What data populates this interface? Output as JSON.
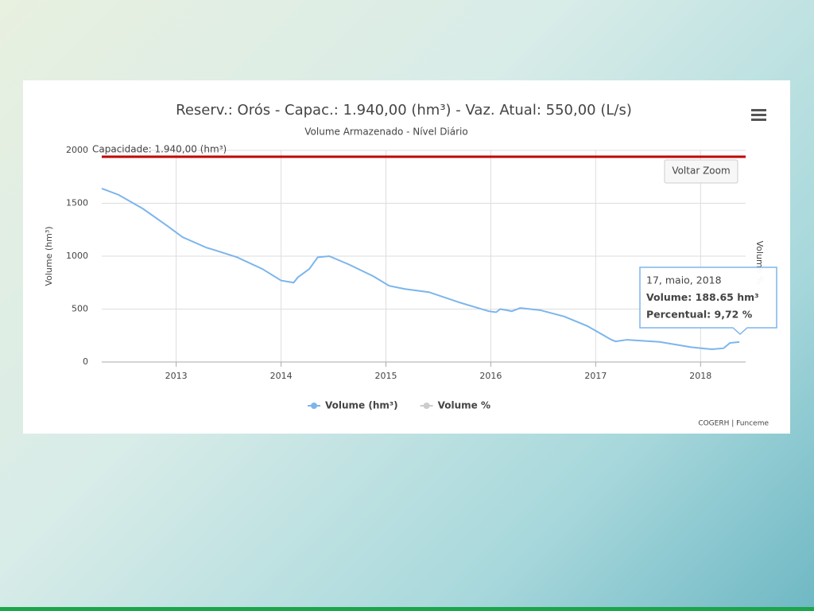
{
  "chart_data": {
    "type": "line",
    "title": "Reserv.: Orós - Capac.: 1.940,00 (hm³) - Vaz. Atual: 550,00 (L/s)",
    "subtitle": "Volume Armazenado - Nível Diário",
    "y_label": "Volume (hm³)",
    "y2_label": "Volume %",
    "x": [
      2012.29,
      2012.45,
      2012.68,
      2012.91,
      2013.06,
      2013.29,
      2013.36,
      2013.58,
      2013.82,
      2014.0,
      2014.12,
      2014.16,
      2014.27,
      2014.35,
      2014.46,
      2014.65,
      2014.88,
      2015.03,
      2015.18,
      2015.41,
      2015.71,
      2015.98,
      2016.05,
      2016.09,
      2016.2,
      2016.28,
      2016.47,
      2016.7,
      2016.92,
      2017.15,
      2017.19,
      2017.3,
      2017.61,
      2017.91,
      2018.11,
      2018.22,
      2018.28,
      2018.37
    ],
    "series": [
      {
        "name": "Volume (hm³)",
        "color": "#7cb5ec",
        "values": [
          1640,
          1580,
          1450,
          1290,
          1180,
          1080,
          1060,
          990,
          880,
          770,
          750,
          800,
          880,
          990,
          1000,
          920,
          810,
          720,
          690,
          660,
          560,
          480,
          470,
          500,
          480,
          510,
          490,
          430,
          340,
          210,
          195,
          210,
          190,
          140,
          120,
          130,
          180,
          188.65
        ]
      },
      {
        "name": "Volume %",
        "color": "#cccccc",
        "axis": "y2",
        "visible": false
      }
    ],
    "xlim": [
      2012.29,
      2018.43
    ],
    "xticks": [
      2013,
      2014,
      2015,
      2016,
      2017,
      2018
    ],
    "ylim": [
      0,
      2000
    ],
    "yticks": [
      0,
      500,
      1000,
      1500,
      2000
    ],
    "grid": true,
    "plot_lines": [
      {
        "value": 1940,
        "label": "Capacidade: 1.940,00 (hm³)",
        "color": "#c00000"
      }
    ],
    "tooltip": {
      "lines": [
        "17, maio, 2018",
        "Volume: 188.65 hm³",
        "Percentual: 9,72 %"
      ]
    },
    "button": "Voltar Zoom",
    "credits": "COGERH | Funceme"
  }
}
